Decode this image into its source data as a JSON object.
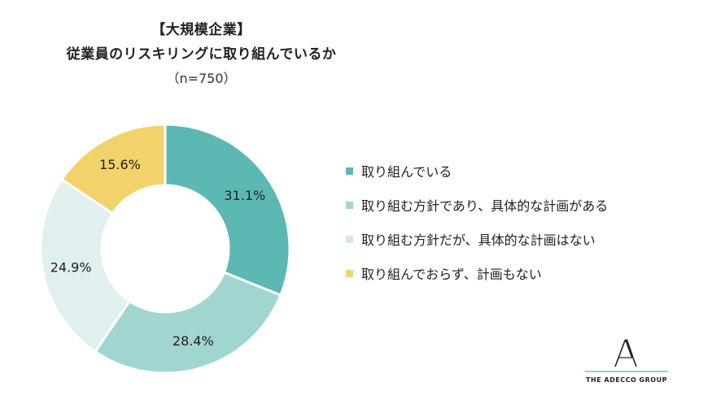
{
  "title": {
    "line1": "【大規模企業】",
    "line2": "従業員のリスキリングに取り組んでいるか",
    "line3": "（n=750）"
  },
  "chart_data": {
    "type": "pie",
    "donut": true,
    "categories": [
      "取り組んでいる",
      "取り組む方針であり、具体的な計画がある",
      "取り組む方針だが、具体的な計画はない",
      "取り組んでおらず、計画もない"
    ],
    "values": [
      31.1,
      28.4,
      24.9,
      15.6
    ],
    "value_labels": [
      "31.1%",
      "28.4%",
      "24.9%",
      "15.6%"
    ],
    "colors": [
      "#5cb8b2",
      "#a1d5d0",
      "#dff0ee",
      "#f2d36b"
    ],
    "legend_position": "right"
  },
  "logo": {
    "text": "THE ADECCO GROUP"
  }
}
